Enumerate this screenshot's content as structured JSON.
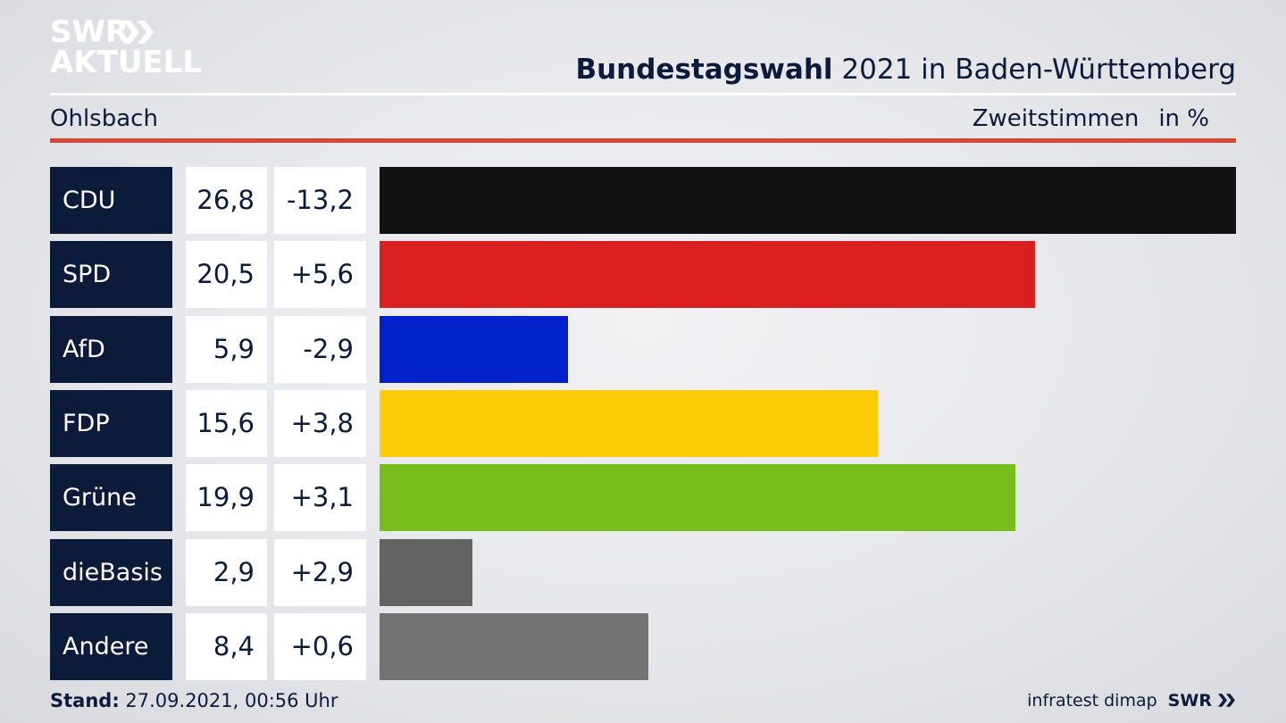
{
  "logo": {
    "line1": "SWR",
    "line2": "AKTUELL",
    "icon": "double-chevron-icon"
  },
  "header": {
    "title_bold": "Bundestagswahl",
    "title_rest": " 2021 in Baden-Württemberg",
    "location": "Ohlsbach",
    "measure": "Zweitstimmen",
    "unit": "in %"
  },
  "footer": {
    "stand_label": "Stand:",
    "stand_value": " 27.09.2021, 00:56 Uhr",
    "source": "infratest dimap",
    "brand": "SWR",
    "brand_icon": "double-chevron-icon"
  },
  "chart_data": {
    "type": "bar",
    "orientation": "horizontal",
    "categories": [
      "CDU",
      "SPD",
      "AfD",
      "FDP",
      "Grüne",
      "dieBasis",
      "Andere"
    ],
    "series": [
      {
        "values": [
          26.8,
          20.5,
          5.9,
          15.6,
          19.9,
          2.9,
          8.4
        ]
      }
    ],
    "values_label": [
      "26,8",
      "20,5",
      "5,9",
      "15,6",
      "19,9",
      "2,9",
      "8,4"
    ],
    "diff": [
      -13.2,
      5.6,
      -2.9,
      3.8,
      3.1,
      2.9,
      0.6
    ],
    "diff_label": [
      "-13,2",
      "+5,6",
      "-2,9",
      "+3,8",
      "+3,1",
      "+2,9",
      "+0,6"
    ],
    "colors": [
      "#121212",
      "#d91f20",
      "#0021c9",
      "#fdca08",
      "#77be1d",
      "#636363",
      "#737373"
    ],
    "xlim": [
      0,
      26.8
    ],
    "grid": false,
    "legend": false
  }
}
